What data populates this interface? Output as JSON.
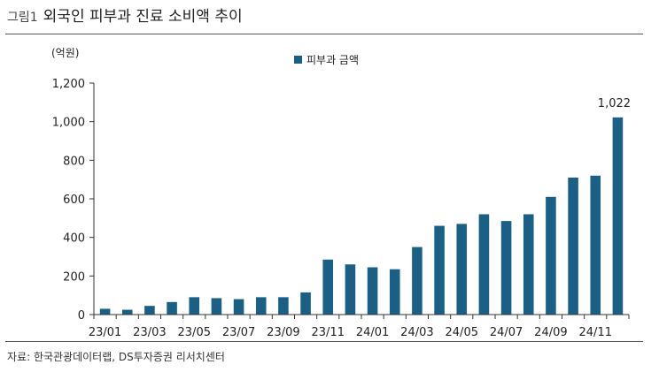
{
  "figure": {
    "label": "그림1",
    "title": "외국인 피부과 진료 소비액 추이",
    "source": "자료: 한국관광데이터랩, DS투자증권 리서치센터"
  },
  "colors": {
    "bar": "#1a5f86",
    "axis": "#333333",
    "text": "#222222"
  },
  "chart_data": {
    "type": "bar",
    "unit_label": "(억원)",
    "x": [
      "23/01",
      "23/02",
      "23/03",
      "23/04",
      "23/05",
      "23/06",
      "23/07",
      "23/08",
      "23/09",
      "23/10",
      "23/11",
      "23/12",
      "24/01",
      "24/02",
      "24/03",
      "24/04",
      "24/05",
      "24/06",
      "24/07",
      "24/08",
      "24/09",
      "24/10",
      "24/11",
      "24/12"
    ],
    "x_tick_labels": [
      "23/01",
      "23/03",
      "23/05",
      "23/07",
      "23/09",
      "23/11",
      "24/01",
      "24/03",
      "24/05",
      "24/07",
      "24/09",
      "24/11"
    ],
    "series": [
      {
        "name": "피부과 금액",
        "values": [
          30,
          25,
          45,
          65,
          90,
          85,
          80,
          90,
          90,
          115,
          285,
          260,
          245,
          235,
          350,
          460,
          470,
          520,
          485,
          520,
          610,
          710,
          720,
          1022
        ]
      }
    ],
    "ylim": [
      0,
      1200
    ],
    "yticks": [
      0,
      200,
      400,
      600,
      800,
      1000,
      1200
    ],
    "ytick_labels": [
      "0",
      "200",
      "400",
      "600",
      "800",
      "1,000",
      "1,200"
    ],
    "data_labels": [
      {
        "index": 23,
        "text": "1,022"
      }
    ],
    "grid": false,
    "legend_position": "top-center"
  }
}
